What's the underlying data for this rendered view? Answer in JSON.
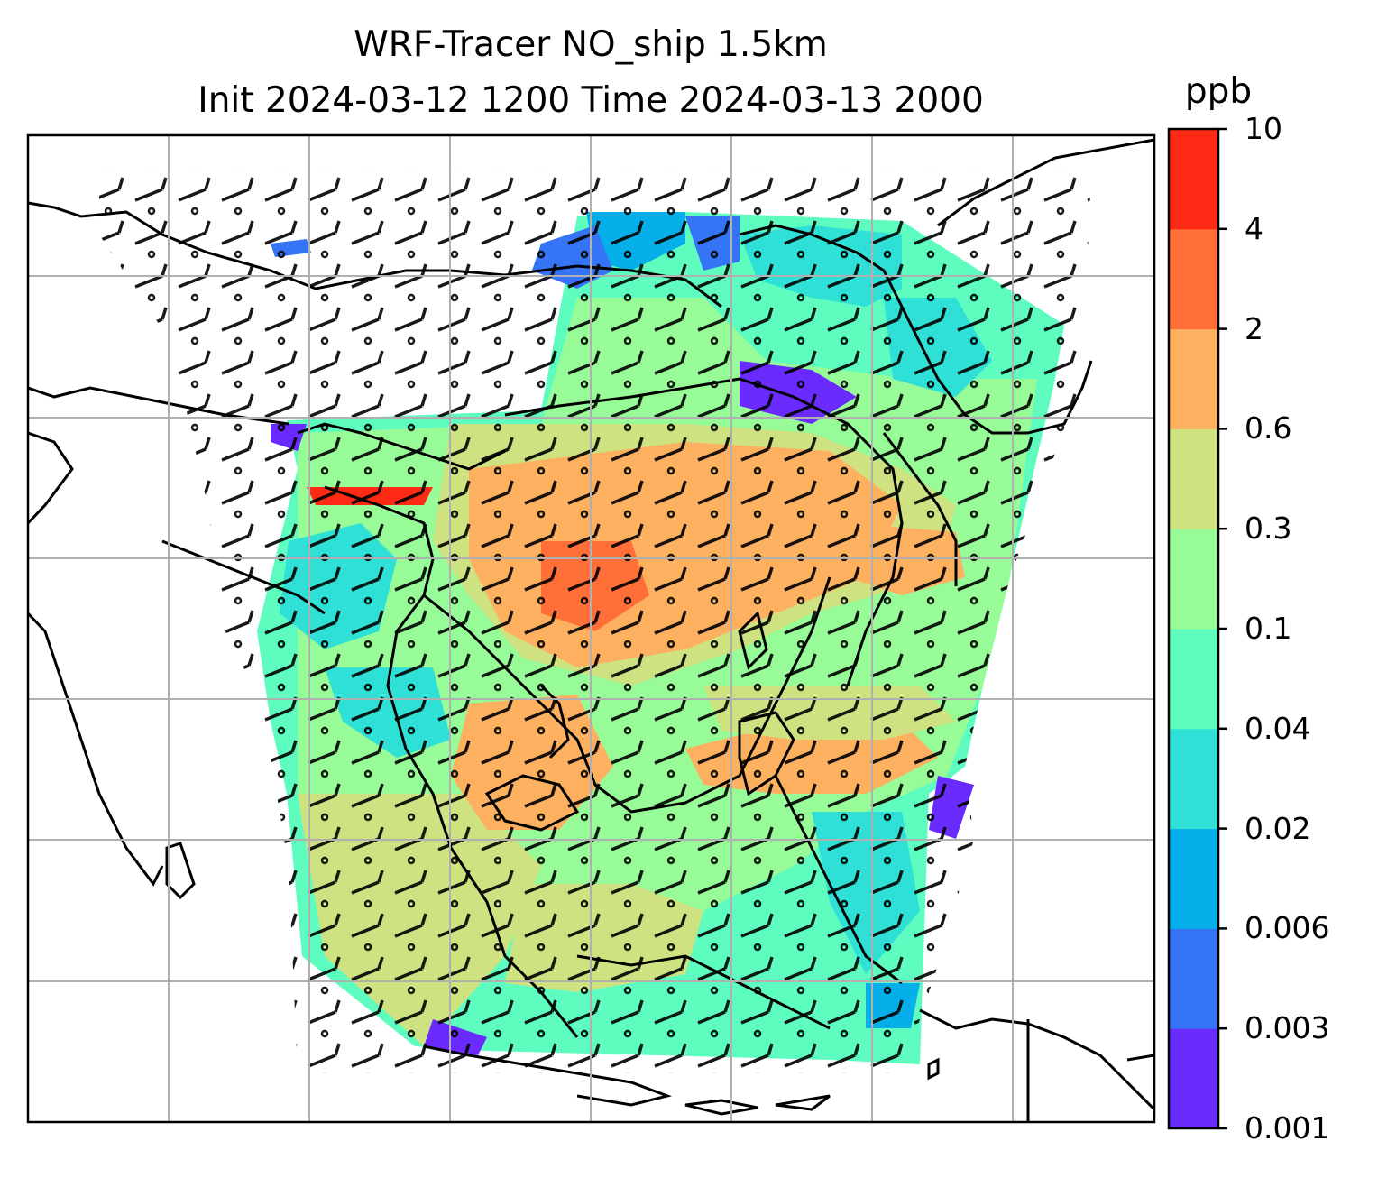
{
  "title": {
    "line1": "WRF-Tracer NO_ship 1.5km",
    "line2": "Init 2024-03-12 1200 Time 2024-03-13 2000"
  },
  "colorbar": {
    "unit": "ppb",
    "tick_labels": [
      "0.001",
      "0.003",
      "0.006",
      "0.02",
      "0.04",
      "0.1",
      "0.3",
      "0.6",
      "2",
      "4",
      "10"
    ],
    "colors": [
      "#6a2bff",
      "#3474f5",
      "#06aeea",
      "#2ee0d6",
      "#5efcbf",
      "#97fb97",
      "#cee281",
      "#fdb060",
      "#ff6f37",
      "#ff2a15"
    ]
  },
  "map": {
    "grid": "on",
    "wind_barbs": "on"
  }
}
